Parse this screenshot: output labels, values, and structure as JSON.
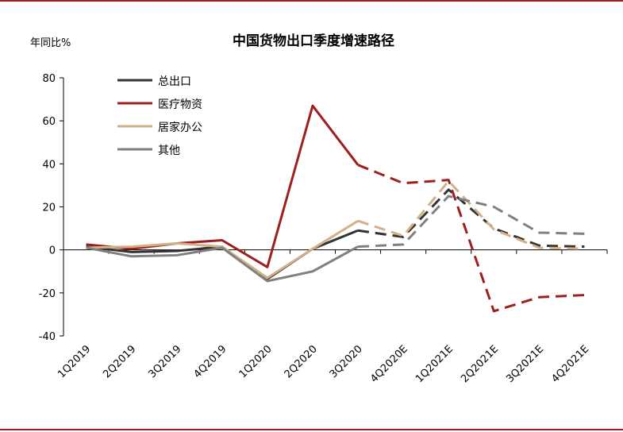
{
  "chart_data": {
    "type": "line",
    "title": "中国货物出口季度增速路径",
    "ylabel": "年同比%",
    "xlabel": "",
    "ylim": [
      -40,
      80
    ],
    "yticks": [
      -40,
      -20,
      0,
      20,
      40,
      60,
      80
    ],
    "categories": [
      "1Q2019",
      "2Q2019",
      "3Q2019",
      "4Q2019",
      "1Q2020",
      "2Q2020",
      "3Q2020",
      "4Q2020E",
      "1Q2021E",
      "2Q2021E",
      "3Q2021E",
      "4Q2021E"
    ],
    "actual_through_index": 6,
    "forecast_style": "dashed",
    "grid": false,
    "legend_position": "top-left",
    "series": [
      {
        "name": "总出口",
        "color": "#333333",
        "values": [
          1.5,
          -1.0,
          -0.5,
          1.5,
          -13.5,
          0.5,
          9.0,
          6.0,
          28.0,
          10.0,
          2.0,
          1.5
        ]
      },
      {
        "name": "医疗物资",
        "color": "#9d1f1f",
        "values": [
          2.5,
          0.5,
          3.0,
          4.5,
          -8.0,
          67.0,
          39.5,
          31.0,
          32.5,
          -28.5,
          -22.0,
          -21.0
        ]
      },
      {
        "name": "居家办公",
        "color": "#d4b088",
        "values": [
          1.0,
          1.5,
          3.0,
          1.5,
          -13.0,
          0.5,
          13.5,
          6.5,
          32.0,
          9.5,
          1.0,
          0.5
        ]
      },
      {
        "name": "其他",
        "color": "#808080",
        "values": [
          1.0,
          -3.0,
          -2.5,
          1.0,
          -14.5,
          -10.0,
          1.5,
          2.5,
          25.0,
          20.0,
          8.0,
          7.5
        ]
      }
    ]
  }
}
